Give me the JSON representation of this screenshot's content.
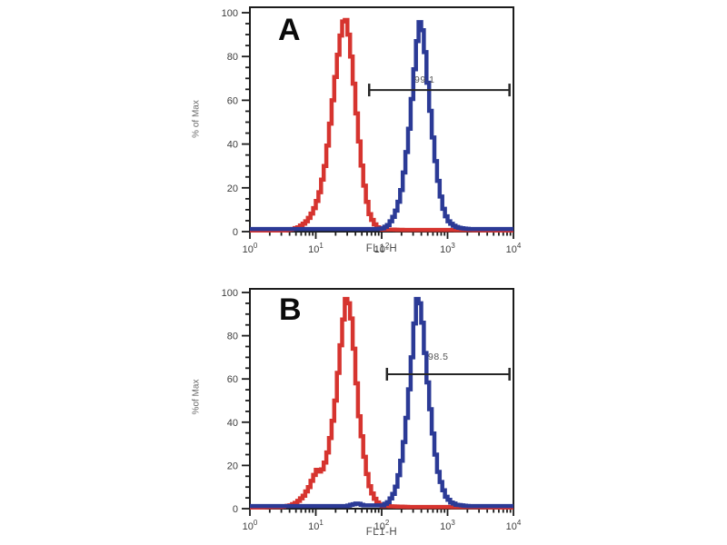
{
  "page": {
    "background": "#ffffff"
  },
  "colors": {
    "axis": "#1c1c1c",
    "gate": "#262626",
    "red_series": "#d6342f",
    "blue_series": "#2b3a96",
    "tick_text": "#3d3d3d"
  },
  "chart_data": [
    {
      "type": "line",
      "subtype": "flow-cytometry-histogram",
      "panel_label": "A",
      "xlabel": "FL1-H",
      "ylabel": "% of Max",
      "x_scale": "log10",
      "x_range": [
        1,
        10000
      ],
      "ylim": [
        0,
        100
      ],
      "grid": false,
      "y_major_ticks": [
        0,
        20,
        40,
        60,
        80,
        100
      ],
      "y_minor_step": 5,
      "x_decade_exponents": [
        0,
        1,
        2,
        3,
        4
      ],
      "gate": {
        "label": "99.1",
        "y_pct": 64.7,
        "from_log10": 1.81,
        "to_log10": 3.94
      },
      "series": [
        {
          "name": "red-histogram",
          "color": "#d6342f",
          "points_log10x_ypct": [
            [
              0.0,
              0.5
            ],
            [
              0.5,
              0.5
            ],
            [
              0.62,
              1
            ],
            [
              0.72,
              2
            ],
            [
              0.82,
              4
            ],
            [
              0.9,
              7
            ],
            [
              0.98,
              12
            ],
            [
              1.05,
              19
            ],
            [
              1.12,
              30
            ],
            [
              1.18,
              44
            ],
            [
              1.24,
              60
            ],
            [
              1.3,
              76
            ],
            [
              1.35,
              88
            ],
            [
              1.4,
              96
            ],
            [
              1.43,
              98
            ],
            [
              1.46,
              94
            ],
            [
              1.5,
              86
            ],
            [
              1.55,
              71
            ],
            [
              1.6,
              54
            ],
            [
              1.65,
              38
            ],
            [
              1.7,
              25
            ],
            [
              1.75,
              15
            ],
            [
              1.8,
              8
            ],
            [
              1.86,
              4
            ],
            [
              1.92,
              2
            ],
            [
              2.0,
              1
            ],
            [
              2.3,
              0.8
            ],
            [
              3.0,
              0.8
            ],
            [
              3.5,
              0.6
            ],
            [
              4.0,
              0.5
            ]
          ]
        },
        {
          "name": "blue-histogram",
          "color": "#2b3a96",
          "points_log10x_ypct": [
            [
              0.0,
              1.2
            ],
            [
              1.9,
              1.2
            ],
            [
              2.0,
              1.5
            ],
            [
              2.08,
              3
            ],
            [
              2.15,
              6
            ],
            [
              2.22,
              11
            ],
            [
              2.28,
              19
            ],
            [
              2.34,
              31
            ],
            [
              2.4,
              47
            ],
            [
              2.45,
              64
            ],
            [
              2.5,
              81
            ],
            [
              2.54,
              93
            ],
            [
              2.57,
              97
            ],
            [
              2.6,
              92
            ],
            [
              2.64,
              82
            ],
            [
              2.68,
              68
            ],
            [
              2.73,
              52
            ],
            [
              2.78,
              37
            ],
            [
              2.83,
              25
            ],
            [
              2.88,
              16
            ],
            [
              2.93,
              9
            ],
            [
              2.99,
              5
            ],
            [
              3.06,
              3
            ],
            [
              3.14,
              1.8
            ],
            [
              3.3,
              1.2
            ],
            [
              4.0,
              1.2
            ]
          ]
        }
      ]
    },
    {
      "type": "line",
      "subtype": "flow-cytometry-histogram",
      "panel_label": "B",
      "xlabel": "FL1-H",
      "ylabel": "%of Max",
      "x_scale": "log10",
      "x_range": [
        1,
        10000
      ],
      "ylim": [
        0,
        100
      ],
      "grid": false,
      "y_major_ticks": [
        0,
        20,
        40,
        60,
        80,
        100
      ],
      "y_minor_step": 5,
      "x_decade_exponents": [
        0,
        1,
        2,
        3,
        4
      ],
      "gate": {
        "label": "98.5",
        "y_pct": 62.2,
        "from_log10": 2.08,
        "to_log10": 3.94
      },
      "series": [
        {
          "name": "red-histogram",
          "color": "#d6342f",
          "points_log10x_ypct": [
            [
              0.0,
              0.5
            ],
            [
              0.45,
              0.8
            ],
            [
              0.6,
              1.5
            ],
            [
              0.7,
              3
            ],
            [
              0.8,
              6
            ],
            [
              0.88,
              10
            ],
            [
              0.95,
              15
            ],
            [
              1.0,
              18
            ],
            [
              1.05,
              17
            ],
            [
              1.1,
              19
            ],
            [
              1.16,
              26
            ],
            [
              1.22,
              36
            ],
            [
              1.28,
              50
            ],
            [
              1.33,
              66
            ],
            [
              1.38,
              82
            ],
            [
              1.42,
              93
            ],
            [
              1.45,
              99
            ],
            [
              1.48,
              95
            ],
            [
              1.52,
              88
            ],
            [
              1.56,
              74
            ],
            [
              1.6,
              58
            ],
            [
              1.63,
              45
            ],
            [
              1.67,
              36
            ],
            [
              1.71,
              26
            ],
            [
              1.76,
              16
            ],
            [
              1.81,
              9
            ],
            [
              1.87,
              5
            ],
            [
              1.93,
              2.5
            ],
            [
              2.0,
              1.2
            ],
            [
              2.4,
              0.8
            ],
            [
              3.0,
              0.8
            ],
            [
              4.0,
              0.5
            ]
          ]
        },
        {
          "name": "blue-histogram",
          "color": "#2b3a96",
          "points_log10x_ypct": [
            [
              0.0,
              1.2
            ],
            [
              1.45,
              1.2
            ],
            [
              1.55,
              2
            ],
            [
              1.62,
              2.5
            ],
            [
              1.7,
              1.5
            ],
            [
              2.0,
              1.5
            ],
            [
              2.08,
              3
            ],
            [
              2.15,
              6
            ],
            [
              2.21,
              11
            ],
            [
              2.27,
              20
            ],
            [
              2.33,
              33
            ],
            [
              2.38,
              48
            ],
            [
              2.43,
              66
            ],
            [
              2.47,
              82
            ],
            [
              2.5,
              93
            ],
            [
              2.53,
              99
            ],
            [
              2.56,
              95
            ],
            [
              2.6,
              86
            ],
            [
              2.64,
              72
            ],
            [
              2.69,
              55
            ],
            [
              2.74,
              40
            ],
            [
              2.79,
              27
            ],
            [
              2.84,
              17
            ],
            [
              2.9,
              10
            ],
            [
              2.96,
              5.5
            ],
            [
              3.03,
              3
            ],
            [
              3.12,
              1.8
            ],
            [
              3.3,
              1.2
            ],
            [
              4.0,
              1.2
            ]
          ]
        }
      ]
    }
  ]
}
